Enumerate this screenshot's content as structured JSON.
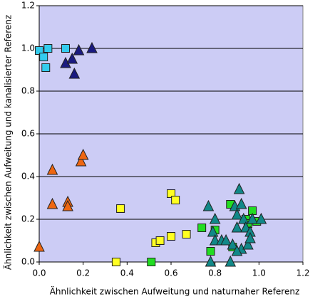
{
  "chart_data": {
    "type": "scatter",
    "xlabel": "Ähnlichkeit zwischen Aufweitung und naturnaher Referenz",
    "ylabel": "Ähnlichkeit zwischen Aufweitung und kanalisierter Referenz",
    "xlim": [
      0,
      1.2
    ],
    "ylim": [
      0,
      1.2
    ],
    "xticks": [
      {
        "value": 0,
        "label": "0.0"
      },
      0.2,
      0.4,
      0.6,
      0.8,
      {
        "value": 1,
        "label": "1.0"
      },
      1.2
    ],
    "yticks": [
      {
        "value": 0,
        "label": "0.0"
      },
      0.2,
      0.4,
      0.6,
      0.8,
      {
        "value": 1,
        "label": "1.0"
      },
      1.2
    ],
    "grid": true,
    "background": "#ccccf5",
    "series": [
      {
        "color": "#33ccee",
        "marker": "square",
        "x": [
          0.0,
          0.04,
          0.02,
          0.03,
          0.12
        ],
        "values": [
          0.99,
          1.0,
          0.96,
          0.91,
          1.0
        ]
      },
      {
        "color": "#1a1a80",
        "marker": "triangle",
        "x": [
          0.12,
          0.15,
          0.18,
          0.24,
          0.16
        ],
        "values": [
          0.93,
          0.95,
          0.99,
          1.0,
          0.88
        ]
      },
      {
        "color": "#ee6611",
        "marker": "triangle",
        "x": [
          0.0,
          0.06,
          0.06,
          0.13,
          0.13,
          0.19,
          0.2
        ],
        "values": [
          0.07,
          0.27,
          0.43,
          0.28,
          0.26,
          0.47,
          0.5
        ]
      },
      {
        "color": "#ffff22",
        "marker": "square",
        "x": [
          0.35,
          0.37,
          0.53,
          0.55,
          0.6,
          0.62,
          0.6,
          0.67
        ],
        "values": [
          0.0,
          0.25,
          0.09,
          0.1,
          0.32,
          0.29,
          0.12,
          0.13
        ]
      },
      {
        "color": "#22dd22",
        "marker": "square",
        "x": [
          0.51,
          0.74,
          0.78,
          0.8,
          0.87,
          0.88,
          0.94,
          0.97,
          0.99,
          0.95
        ],
        "values": [
          0.0,
          0.16,
          0.05,
          0.15,
          0.27,
          0.07,
          0.2,
          0.24,
          0.19,
          0.18
        ]
      },
      {
        "color": "#118888",
        "marker": "triangle",
        "x": [
          0.77,
          0.78,
          0.79,
          0.8,
          0.8,
          0.83,
          0.85,
          0.87,
          0.88,
          0.89,
          0.9,
          0.9,
          0.91,
          0.92,
          0.92,
          0.93,
          0.94,
          0.95,
          0.96,
          0.96,
          0.97,
          1.01,
          0.9
        ],
        "values": [
          0.26,
          0.0,
          0.14,
          0.2,
          0.1,
          0.1,
          0.1,
          0.0,
          0.08,
          0.26,
          0.16,
          0.22,
          0.34,
          0.06,
          0.27,
          0.2,
          0.16,
          0.08,
          0.14,
          0.11,
          0.2,
          0.2,
          0.05
        ]
      }
    ]
  }
}
